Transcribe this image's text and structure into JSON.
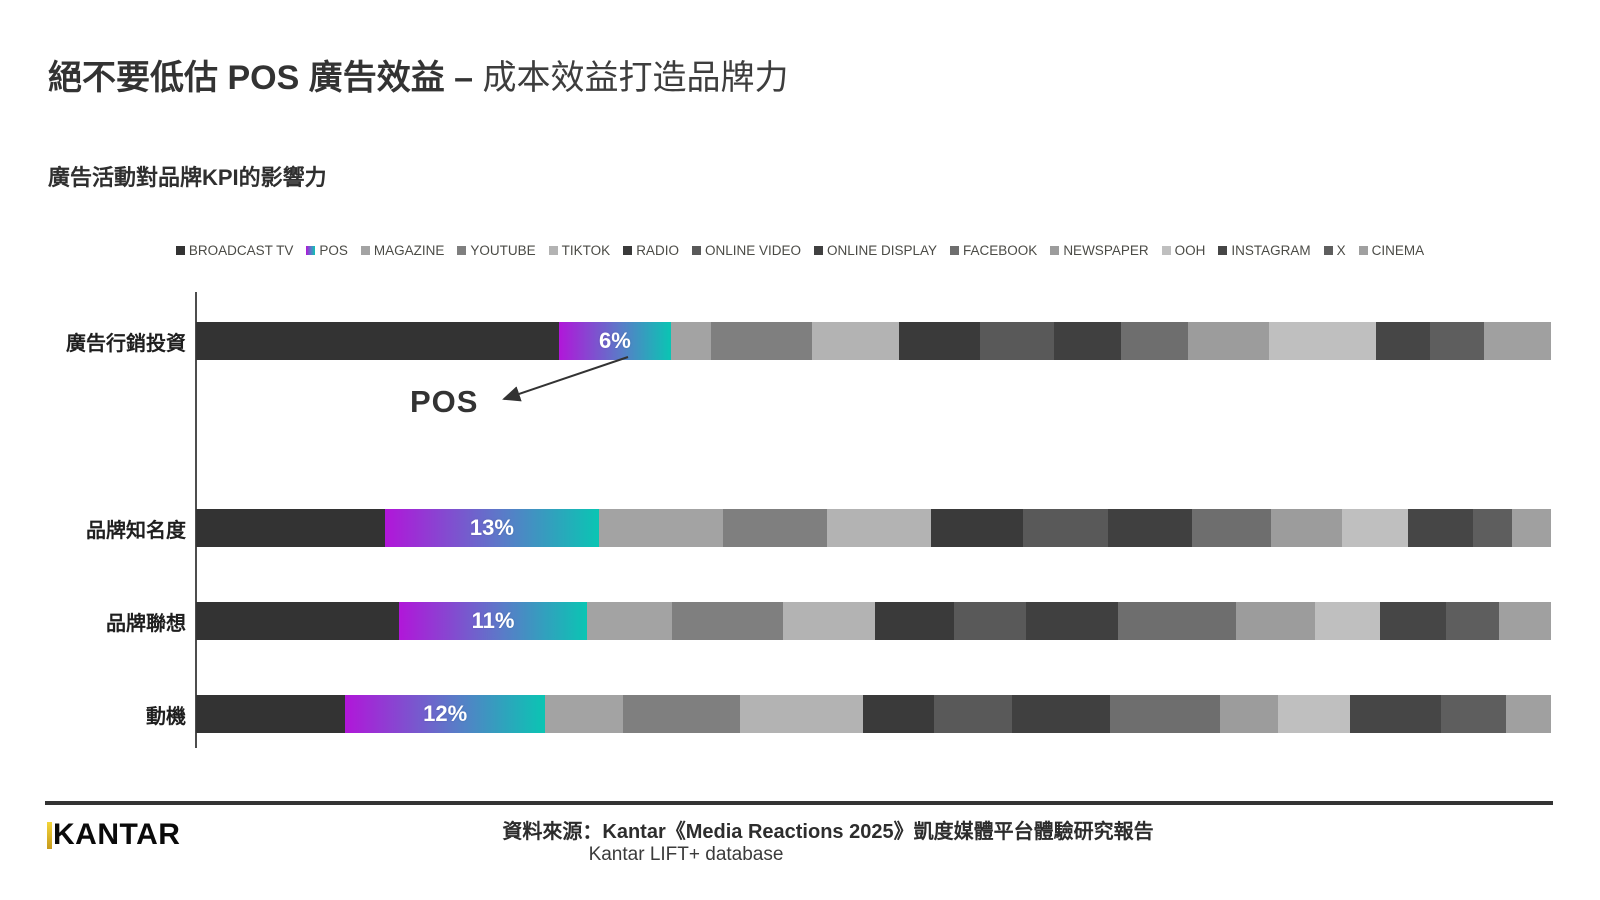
{
  "title": {
    "bold": "絕不要低估 POS 廣告效益 –",
    "regular": " 成本效益打造品牌力"
  },
  "subtitle": "廣告活動對品牌KPI的影響力",
  "pos_gradient": {
    "from": "#b116d9",
    "mid": "#5a7bc8",
    "to": "#0ac5b3"
  },
  "chart_data": {
    "type": "bar",
    "orientation": "horizontal-stacked",
    "unit": "percent of total (estimated from segment widths)",
    "xlim": [
      0,
      100
    ],
    "grid": false,
    "legend_position": "top",
    "categories": [
      "廣告行銷投資",
      "品牌知名度",
      "品牌聯想",
      "動機"
    ],
    "series": [
      {
        "name": "BROADCAST TV",
        "color": "#333333",
        "values": [
          27,
          14.5,
          15.5,
          11.5
        ]
      },
      {
        "name": "POS",
        "color": "gradient",
        "values": [
          6,
          13,
          11,
          12
        ]
      },
      {
        "name": "MAGAZINE",
        "color": "#a3a3a3",
        "values": [
          3,
          9.5,
          6.5,
          6
        ]
      },
      {
        "name": "YOUTUBE",
        "color": "#7f7f7f",
        "values": [
          7.5,
          8,
          8.5,
          9
        ]
      },
      {
        "name": "TIKTOK",
        "color": "#b3b3b3",
        "values": [
          6.5,
          8,
          7,
          9.5
        ]
      },
      {
        "name": "RADIO",
        "color": "#3a3a3a",
        "values": [
          6,
          7,
          6,
          5.5
        ]
      },
      {
        "name": "ONLINE VIDEO",
        "color": "#595959",
        "values": [
          5.5,
          6.5,
          5.5,
          6
        ]
      },
      {
        "name": "ONLINE DISPLAY",
        "color": "#404040",
        "values": [
          5,
          6.5,
          7,
          7.5
        ]
      },
      {
        "name": "FACEBOOK",
        "color": "#6e6e6e",
        "values": [
          5,
          6,
          9,
          8.5
        ]
      },
      {
        "name": "NEWSPAPER",
        "color": "#9c9c9c",
        "values": [
          6,
          5.5,
          6,
          4.5
        ]
      },
      {
        "name": "OOH",
        "color": "#bfbfbf",
        "values": [
          8,
          5,
          5,
          5.5
        ]
      },
      {
        "name": "INSTAGRAM",
        "color": "#464646",
        "values": [
          4,
          5,
          5,
          7
        ]
      },
      {
        "name": "X",
        "color": "#5e5e5e",
        "values": [
          4,
          3,
          4,
          5
        ]
      },
      {
        "name": "CINEMA",
        "color": "#a0a0a0",
        "values": [
          5,
          3,
          4,
          3.5
        ]
      }
    ],
    "pos_segment_labels": [
      "6%",
      "13%",
      "11%",
      "12%"
    ],
    "annotation": "POS"
  },
  "footer": {
    "logo": "KANTAR",
    "source_line1": "資料來源：Kantar《Media Reactions 2025》凱度媒體平台體驗研究報告",
    "source_line2": "Kantar LIFT+ database"
  }
}
